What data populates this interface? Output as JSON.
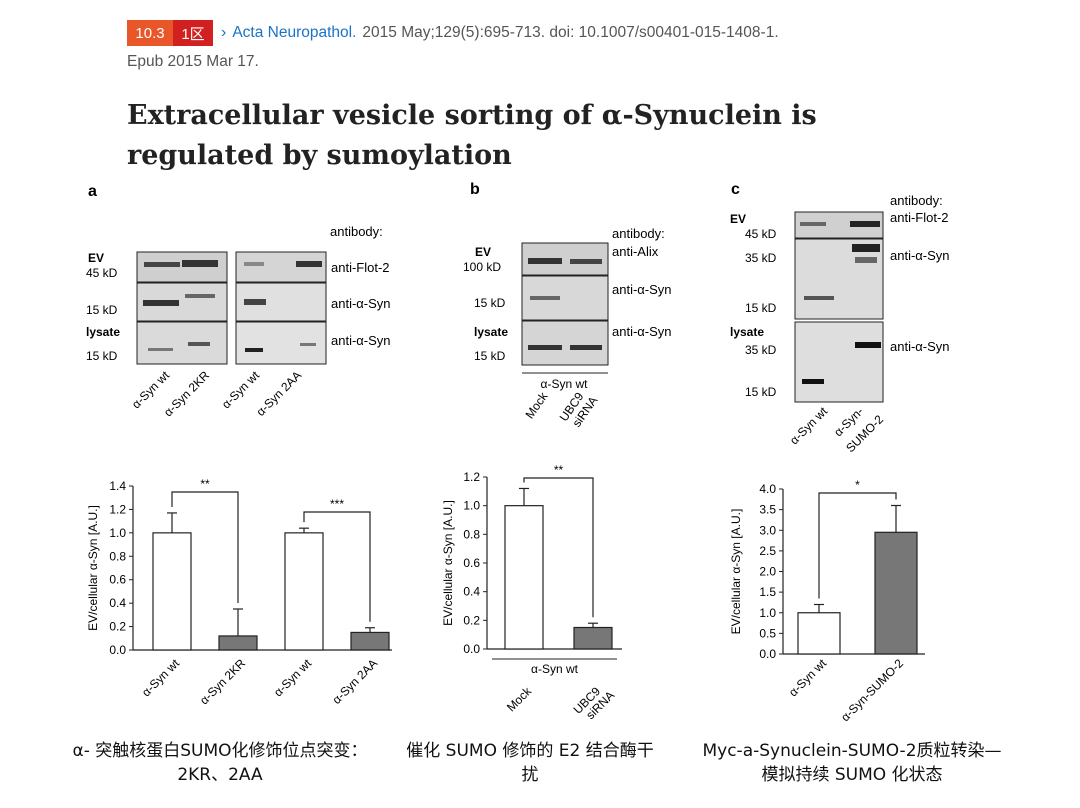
{
  "header": {
    "impact_factor": "10.3",
    "quartile": "1区",
    "journal": "Acta Neuropathol.",
    "citation": "2015 May;129(5):695-713. doi: 10.1007/s00401-015-1408-1.",
    "epub": "Epub 2015 Mar 17."
  },
  "title": "Extracellular vesicle sorting of α-Synuclein is regulated by sumoylation",
  "figure": {
    "panels": {
      "a": {
        "letter": "a",
        "antibody_heading": "antibody:",
        "row_labels": [
          "EV",
          "45 kD",
          "15 kD",
          "lysate",
          "15 kD"
        ],
        "antibodies": [
          "anti-Flot-2",
          "anti-α-Syn",
          "anti-α-Syn"
        ],
        "lanes": [
          "α-Syn wt",
          "α-Syn 2KR",
          "α-Syn wt",
          "α-Syn 2AA"
        ]
      },
      "b": {
        "letter": "b",
        "antibody_heading": "antibody:",
        "row_labels": [
          "EV",
          "100 kD",
          "15 kD",
          "lysate",
          "15 kD"
        ],
        "antibodies": [
          "anti-Alix",
          "anti-α-Syn",
          "anti-α-Syn"
        ],
        "group_label": "α-Syn wt",
        "lanes": [
          "Mock",
          "UBC9",
          "siRNA"
        ]
      },
      "c": {
        "letter": "c",
        "antibody_heading": "antibody:",
        "row_labels": [
          "EV",
          "45 kD",
          "35 kD",
          "15 kD",
          "lysate",
          "35 kD",
          "15 kD"
        ],
        "antibodies": [
          "anti-Flot-2",
          "anti-α-Syn",
          "anti-α-Syn"
        ],
        "lanes": [
          "α-Syn wt",
          "α-Syn-",
          "SUMO-2"
        ]
      }
    }
  },
  "chart_data": [
    {
      "type": "bar",
      "ylabel": "EV/cellular α-Syn [A.U.]",
      "categories": [
        "α-Syn wt",
        "α-Syn 2KR",
        "α-Syn wt",
        "α-Syn 2AA"
      ],
      "values": [
        1.0,
        0.12,
        1.0,
        0.15
      ],
      "errors": [
        0.17,
        0.23,
        0.04,
        0.04
      ],
      "colors": [
        "#ffffff",
        "#777777",
        "#ffffff",
        "#777777"
      ],
      "ylim": [
        0,
        1.4
      ],
      "yticks": [
        "0.0",
        "0.2",
        "0.4",
        "0.6",
        "0.8",
        "1.0",
        "1.2",
        "1.4"
      ],
      "significance": [
        {
          "from": 0,
          "to": 1,
          "label": "**"
        },
        {
          "from": 2,
          "to": 3,
          "label": "***"
        }
      ]
    },
    {
      "type": "bar",
      "ylabel": "EV/cellular α-Syn [A.U.]",
      "categories": [
        "Mock",
        "UBC9 siRNA"
      ],
      "group_label": "α-Syn wt",
      "values": [
        1.0,
        0.15
      ],
      "errors": [
        0.12,
        0.03
      ],
      "colors": [
        "#ffffff",
        "#777777"
      ],
      "ylim": [
        0,
        1.2
      ],
      "yticks": [
        "0.0",
        "0.2",
        "0.4",
        "0.6",
        "0.8",
        "1.0",
        "1.2"
      ],
      "significance": [
        {
          "from": 0,
          "to": 1,
          "label": "**"
        }
      ]
    },
    {
      "type": "bar",
      "ylabel": "EV/cellular α-Syn [A.U.]",
      "categories": [
        "α-Syn wt",
        "α-Syn-SUMO-2"
      ],
      "values": [
        1.0,
        2.95
      ],
      "errors": [
        0.2,
        0.65
      ],
      "colors": [
        "#ffffff",
        "#777777"
      ],
      "ylim": [
        0,
        4.0
      ],
      "yticks": [
        "0.0",
        "0.5",
        "1.0",
        "1.5",
        "2.0",
        "2.5",
        "3.0",
        "3.5",
        "4.0"
      ],
      "significance": [
        {
          "from": 0,
          "to": 1,
          "label": "*"
        }
      ]
    }
  ],
  "captions": [
    "α- 突触核蛋白SUMO化修饰位点突变：2KR、2AA",
    "催化 SUMO 修饰的 E2 结合酶干扰",
    "Myc-a-Synuclein-SUMO-2质粒转染—模拟持续 SUMO 化状态"
  ]
}
